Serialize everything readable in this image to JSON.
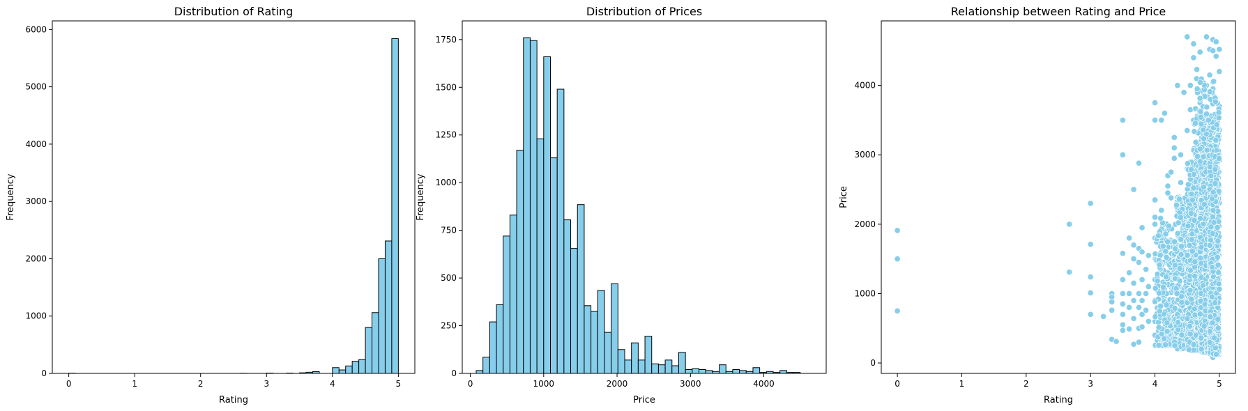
{
  "chart_data": [
    {
      "type": "bar",
      "title": "Distribution of Rating",
      "xlabel": "Rating",
      "ylabel": "Frequency",
      "xlim": [
        -0.25,
        5.25
      ],
      "ylim": [
        0,
        6150
      ],
      "xticks": [
        0,
        1,
        2,
        3,
        4,
        5
      ],
      "yticks": [
        0,
        1000,
        2000,
        3000,
        4000,
        5000,
        6000
      ],
      "bin_edges": [
        0.0,
        0.1,
        0.2,
        0.3,
        0.4,
        0.5,
        0.6,
        0.7,
        0.8,
        0.9,
        1.0,
        1.1,
        1.2,
        1.3,
        1.4,
        1.5,
        1.6,
        1.7,
        1.8,
        1.9,
        2.0,
        2.1,
        2.2,
        2.3,
        2.4,
        2.5,
        2.6,
        2.7,
        2.8,
        2.9,
        3.0,
        3.1,
        3.2,
        3.3,
        3.4,
        3.5,
        3.6,
        3.7,
        3.8,
        3.9,
        4.0,
        4.1,
        4.2,
        4.3,
        4.4,
        4.5,
        4.6,
        4.7,
        4.8,
        4.9,
        5.0
      ],
      "values": [
        3,
        0,
        0,
        0,
        0,
        0,
        0,
        0,
        0,
        0,
        0,
        0,
        0,
        0,
        0,
        0,
        0,
        0,
        0,
        0,
        0,
        0,
        0,
        0,
        0,
        0,
        2,
        0,
        0,
        0,
        5,
        0,
        0,
        5,
        0,
        10,
        20,
        30,
        0,
        0,
        100,
        60,
        130,
        210,
        240,
        800,
        1060,
        2000,
        2310,
        5840
      ]
    },
    {
      "type": "bar",
      "title": "Distribution of Prices",
      "xlabel": "Price",
      "ylabel": "Frequency",
      "xlim": [
        -110,
        4850
      ],
      "ylim": [
        0,
        1848
      ],
      "xticks": [
        0,
        1000,
        2000,
        3000,
        4000
      ],
      "yticks": [
        0,
        250,
        500,
        750,
        1000,
        1250,
        1500,
        1750
      ],
      "bin_start": 80,
      "bin_width": 92,
      "values": [
        15,
        85,
        270,
        360,
        720,
        830,
        1170,
        1760,
        1745,
        1230,
        1660,
        1130,
        1490,
        805,
        655,
        885,
        355,
        325,
        435,
        215,
        470,
        125,
        70,
        160,
        70,
        195,
        50,
        45,
        70,
        40,
        110,
        20,
        25,
        20,
        15,
        10,
        45,
        10,
        20,
        15,
        10,
        30,
        5,
        10,
        5,
        15,
        5,
        5
      ]
    },
    {
      "type": "scatter",
      "title": "Relationship between Rating and Price",
      "xlabel": "Rating",
      "ylabel": "Price",
      "xlim": [
        -0.25,
        5.25
      ],
      "ylim": [
        -150,
        4930
      ],
      "xticks": [
        0,
        1,
        2,
        3,
        4,
        5
      ],
      "yticks": [
        0,
        1000,
        2000,
        3000,
        4000
      ],
      "color": "#87ceeb",
      "points": [
        [
          0,
          1910
        ],
        [
          0,
          1500
        ],
        [
          0,
          750
        ],
        [
          2.67,
          2000
        ],
        [
          2.67,
          1310
        ],
        [
          3,
          2300
        ],
        [
          3,
          1710
        ],
        [
          3,
          1240
        ],
        [
          3,
          1010
        ],
        [
          3,
          700
        ],
        [
          3.2,
          670
        ],
        [
          3.33,
          1000
        ],
        [
          3.33,
          950
        ],
        [
          3.33,
          880
        ],
        [
          3.33,
          760
        ],
        [
          3.33,
          340
        ],
        [
          3.4,
          310
        ],
        [
          3.5,
          3500
        ],
        [
          3.5,
          3000
        ],
        [
          3.5,
          1580
        ],
        [
          3.5,
          1200
        ],
        [
          3.5,
          1000
        ],
        [
          3.5,
          850
        ],
        [
          3.5,
          700
        ],
        [
          3.5,
          550
        ],
        [
          3.5,
          470
        ],
        [
          3.6,
          1800
        ],
        [
          3.6,
          1300
        ],
        [
          3.6,
          1000
        ],
        [
          3.6,
          800
        ],
        [
          3.6,
          490
        ],
        [
          3.67,
          2500
        ],
        [
          3.67,
          1700
        ],
        [
          3.67,
          1500
        ],
        [
          3.67,
          1150
        ],
        [
          3.67,
          900
        ],
        [
          3.67,
          640
        ],
        [
          3.67,
          270
        ],
        [
          3.75,
          2880
        ],
        [
          3.75,
          1650
        ],
        [
          3.75,
          1450
        ],
        [
          3.75,
          1000
        ],
        [
          3.75,
          800
        ],
        [
          3.75,
          500
        ],
        [
          3.75,
          300
        ],
        [
          3.8,
          1950
        ],
        [
          3.8,
          1600
        ],
        [
          3.8,
          1200
        ],
        [
          3.8,
          900
        ],
        [
          3.8,
          700
        ],
        [
          3.8,
          520
        ],
        [
          3.86,
          1350
        ],
        [
          3.86,
          1000
        ],
        [
          3.86,
          760
        ],
        [
          3.9,
          1550
        ],
        [
          3.9,
          1100
        ],
        [
          3.9,
          600
        ],
        [
          4,
          3750
        ],
        [
          4,
          3500
        ],
        [
          4,
          2350
        ],
        [
          4,
          2100
        ],
        [
          4,
          2000
        ],
        [
          4,
          1800
        ],
        [
          4,
          1500
        ],
        [
          4,
          1200
        ],
        [
          4,
          900
        ],
        [
          4,
          600
        ],
        [
          4,
          400
        ],
        [
          4,
          250
        ],
        [
          4.1,
          3500
        ],
        [
          4.1,
          2200
        ],
        [
          4.15,
          3600
        ],
        [
          4.2,
          2700
        ],
        [
          4.2,
          2550
        ],
        [
          4.2,
          2450
        ],
        [
          4.25,
          2380
        ],
        [
          4.25,
          2750
        ],
        [
          4.3,
          3250
        ],
        [
          4.3,
          3100
        ],
        [
          4.3,
          2950
        ],
        [
          4.35,
          4000
        ],
        [
          4.4,
          3000
        ],
        [
          4.4,
          2600
        ],
        [
          4.5,
          4700
        ],
        [
          4.55,
          4000
        ],
        [
          4.6,
          4600
        ],
        [
          4.6,
          4400
        ],
        [
          4.65,
          4230
        ],
        [
          4.7,
          4480
        ],
        [
          4.8,
          4700
        ],
        [
          4.85,
          4520
        ],
        [
          4.9,
          4660
        ],
        [
          4.9,
          4500
        ],
        [
          4.95,
          4630
        ],
        [
          4.95,
          4420
        ],
        [
          5,
          4520
        ],
        [
          5,
          4200
        ],
        [
          4.45,
          3900
        ],
        [
          4.5,
          3350
        ],
        [
          4.55,
          3650
        ],
        [
          4.6,
          3500
        ],
        [
          4.7,
          3750
        ],
        [
          4.75,
          3900
        ],
        [
          4.8,
          4000
        ],
        [
          4.85,
          4150
        ],
        [
          4.9,
          3950
        ],
        [
          5,
          3700
        ],
        [
          4.9,
          80
        ],
        [
          4.8,
          150
        ],
        [
          4.7,
          200
        ]
      ],
      "clusters": [
        {
          "x": [
            4.0,
            4.3
          ],
          "y": [
            250,
            2100
          ],
          "n": 220
        },
        {
          "x": [
            4.3,
            4.5
          ],
          "y": [
            200,
            2400
          ],
          "n": 320
        },
        {
          "x": [
            4.5,
            4.7
          ],
          "y": [
            180,
            2900
          ],
          "n": 420
        },
        {
          "x": [
            4.7,
            4.85
          ],
          "y": [
            150,
            3300
          ],
          "n": 520
        },
        {
          "x": [
            4.85,
            5.0
          ],
          "y": [
            120,
            3600
          ],
          "n": 620
        },
        {
          "x": [
            4.6,
            5.0
          ],
          "y": [
            2900,
            4100
          ],
          "n": 120
        }
      ]
    }
  ]
}
